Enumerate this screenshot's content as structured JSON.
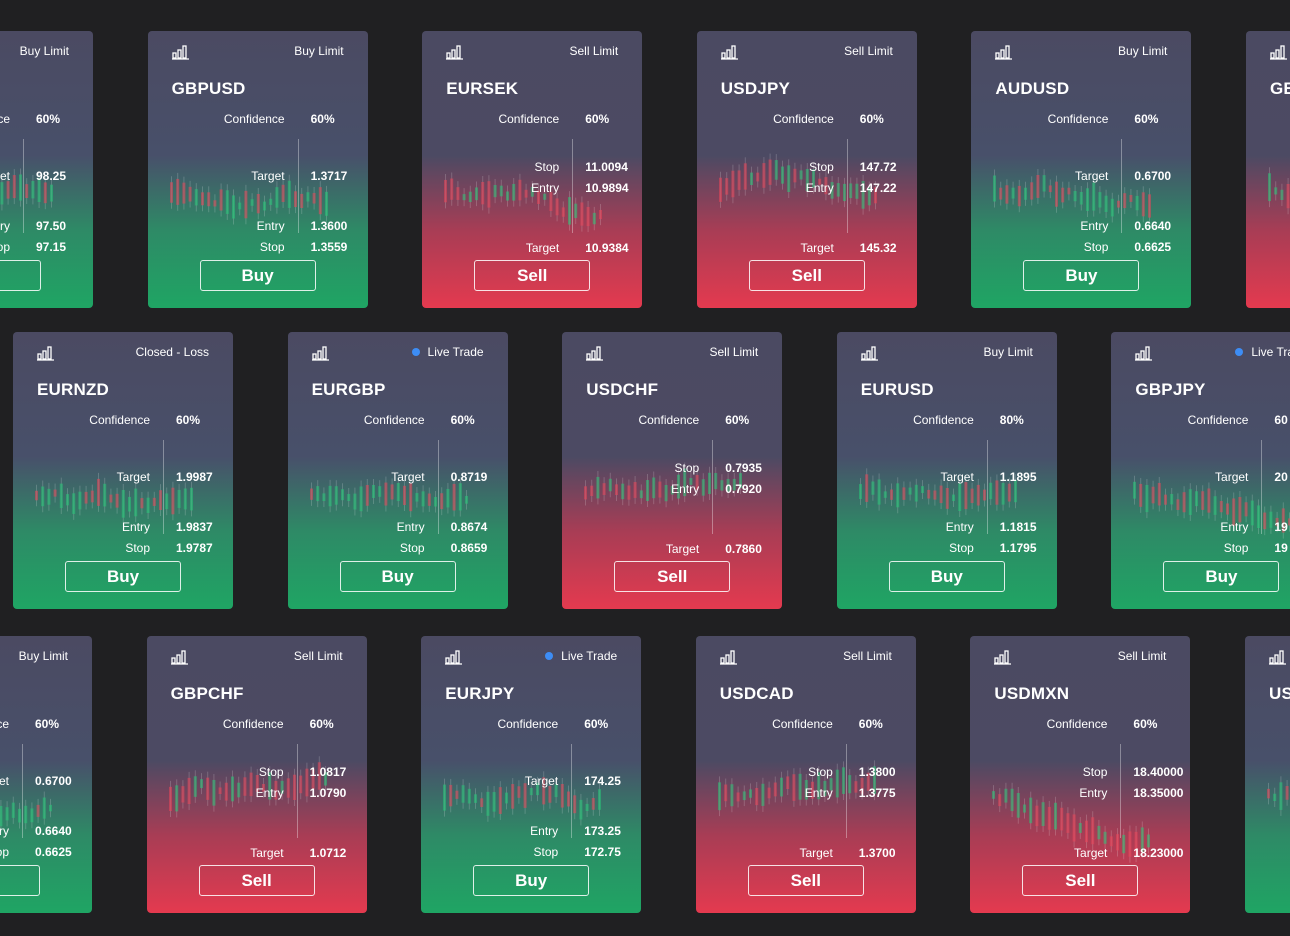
{
  "rows": [
    {
      "cards": [
        {
          "side": "buy",
          "status": "Buy Limit",
          "confidence": {
            "label": "Confidence",
            "value": "60%"
          },
          "levels": [
            {
              "label": "Target",
              "value": "98.25"
            },
            {
              "label": "Entry",
              "value": "97.50"
            },
            {
              "label": "Stop",
              "value": "97.15"
            }
          ]
        },
        {
          "side": "buy",
          "status": "Buy Limit",
          "pair": "GBPUSD",
          "confidence": {
            "label": "Confidence",
            "value": "60%"
          },
          "levels": [
            {
              "label": "Target",
              "value": "1.3717"
            },
            {
              "label": "Entry",
              "value": "1.3600"
            },
            {
              "label": "Stop",
              "value": "1.3559"
            }
          ],
          "button": "Buy"
        },
        {
          "side": "sell",
          "status": "Sell Limit",
          "pair": "EURSEK",
          "confidence": {
            "label": "Confidence",
            "value": "60%"
          },
          "levels": [
            {
              "label": "Stop",
              "value": "11.0094"
            },
            {
              "label": "Entry",
              "value": "10.9894"
            },
            {
              "label": "Target",
              "value": "10.9384"
            }
          ],
          "button": "Sell"
        },
        {
          "side": "sell",
          "status": "Sell Limit",
          "pair": "USDJPY",
          "confidence": {
            "label": "Confidence",
            "value": "60%"
          },
          "levels": [
            {
              "label": "Stop",
              "value": "147.72"
            },
            {
              "label": "Entry",
              "value": "147.22"
            },
            {
              "label": "Target",
              "value": "145.32"
            }
          ],
          "button": "Sell"
        },
        {
          "side": "buy",
          "status": "Buy Limit",
          "pair": "AUDUSD",
          "confidence": {
            "label": "Confidence",
            "value": "60%"
          },
          "levels": [
            {
              "label": "Target",
              "value": "0.6700"
            },
            {
              "label": "Entry",
              "value": "0.6640"
            },
            {
              "label": "Stop",
              "value": "0.6625"
            }
          ],
          "button": "Buy"
        },
        {
          "side": "sell",
          "pair": "GE"
        }
      ]
    },
    {
      "cards": [
        {
          "side": "buy",
          "status": "Closed - Loss",
          "pair": "EURNZD",
          "confidence": {
            "label": "Confidence",
            "value": "60%"
          },
          "levels": [
            {
              "label": "Target",
              "value": "1.9987"
            },
            {
              "label": "Entry",
              "value": "1.9837"
            },
            {
              "label": "Stop",
              "value": "1.9787"
            }
          ],
          "button": "Buy"
        },
        {
          "side": "buy",
          "status": "Live Trade",
          "live": true,
          "pair": "EURGBP",
          "confidence": {
            "label": "Confidence",
            "value": "60%"
          },
          "levels": [
            {
              "label": "Target",
              "value": "0.8719"
            },
            {
              "label": "Entry",
              "value": "0.8674"
            },
            {
              "label": "Stop",
              "value": "0.8659"
            }
          ],
          "button": "Buy"
        },
        {
          "side": "sell",
          "status": "Sell Limit",
          "pair": "USDCHF",
          "confidence": {
            "label": "Confidence",
            "value": "60%"
          },
          "levels": [
            {
              "label": "Stop",
              "value": "0.7935"
            },
            {
              "label": "Entry",
              "value": "0.7920"
            },
            {
              "label": "Target",
              "value": "0.7860"
            }
          ],
          "button": "Sell"
        },
        {
          "side": "buy",
          "status": "Buy Limit",
          "pair": "EURUSD",
          "confidence": {
            "label": "Confidence",
            "value": "80%"
          },
          "levels": [
            {
              "label": "Target",
              "value": "1.1895"
            },
            {
              "label": "Entry",
              "value": "1.1815"
            },
            {
              "label": "Stop",
              "value": "1.1795"
            }
          ],
          "button": "Buy"
        },
        {
          "side": "buy",
          "status": "Live Trade",
          "live": true,
          "pair": "GBPJPY",
          "confidence": {
            "label": "Confidence",
            "value": "60"
          },
          "levels": [
            {
              "label": "Target",
              "value": "20"
            },
            {
              "label": "Entry",
              "value": "19"
            },
            {
              "label": "Stop",
              "value": "19"
            }
          ],
          "button": "Buy"
        }
      ]
    },
    {
      "cards": [
        {
          "side": "buy",
          "status": "Buy Limit",
          "confidence": {
            "label": "Confidence",
            "value": "60%"
          },
          "levels": [
            {
              "label": "Target",
              "value": "0.6700"
            },
            {
              "label": "Entry",
              "value": "0.6640"
            },
            {
              "label": "Stop",
              "value": "0.6625"
            }
          ]
        },
        {
          "side": "sell",
          "status": "Sell Limit",
          "pair": "GBPCHF",
          "confidence": {
            "label": "Confidence",
            "value": "60%"
          },
          "levels": [
            {
              "label": "Stop",
              "value": "1.0817"
            },
            {
              "label": "Entry",
              "value": "1.0790"
            },
            {
              "label": "Target",
              "value": "1.0712"
            }
          ],
          "button": "Sell"
        },
        {
          "side": "buy",
          "status": "Live Trade",
          "live": true,
          "pair": "EURJPY",
          "confidence": {
            "label": "Confidence",
            "value": "60%"
          },
          "levels": [
            {
              "label": "Target",
              "value": "174.25"
            },
            {
              "label": "Entry",
              "value": "173.25"
            },
            {
              "label": "Stop",
              "value": "172.75"
            }
          ],
          "button": "Buy"
        },
        {
          "side": "sell",
          "status": "Sell Limit",
          "pair": "USDCAD",
          "confidence": {
            "label": "Confidence",
            "value": "60%"
          },
          "levels": [
            {
              "label": "Stop",
              "value": "1.3800"
            },
            {
              "label": "Entry",
              "value": "1.3775"
            },
            {
              "label": "Target",
              "value": "1.3700"
            }
          ],
          "button": "Sell"
        },
        {
          "side": "sell",
          "status": "Sell Limit",
          "pair": "USDMXN",
          "confidence": {
            "label": "Confidence",
            "value": "60%"
          },
          "levels": [
            {
              "label": "Stop",
              "value": "18.40000"
            },
            {
              "label": "Entry",
              "value": "18.35000"
            },
            {
              "label": "Target",
              "value": "18.23000"
            }
          ],
          "button": "Sell"
        },
        {
          "side": "buy",
          "pair": "US"
        }
      ]
    }
  ]
}
